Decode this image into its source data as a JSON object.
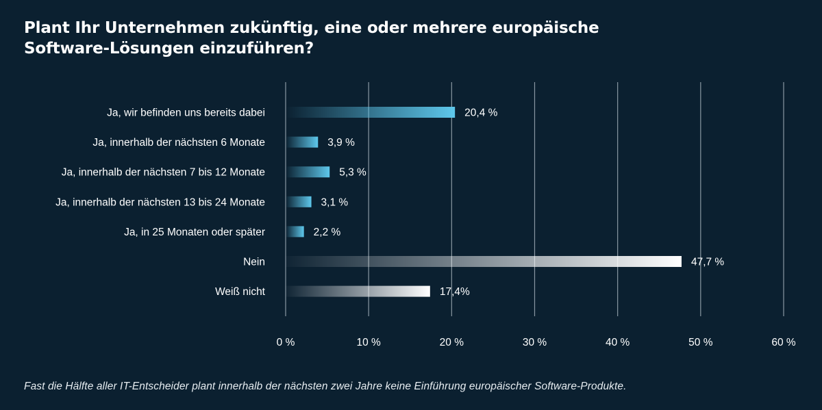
{
  "title_lines": [
    "Plant Ihr Unternehmen zukünftig, eine oder mehrere europäische",
    "Software-Lösungen einzuführen?"
  ],
  "footnote": "Fast die Hälfte aller IT-Entscheider plant innerhalb der nächsten zwei Jahre keine Einführung europäischer Software-Produkte.",
  "colors": {
    "background": "#0b2030",
    "yes_bar_end": "#5ec8ec",
    "no_bar_end": "#ffffff",
    "gridline": "#8a98a3"
  },
  "chart_data": {
    "type": "bar",
    "orientation": "horizontal",
    "title": "Plant Ihr Unternehmen zukünftig, eine oder mehrere europäische Software-Lösungen einzuführen?",
    "categories": [
      "Ja, wir befinden uns bereits dabei",
      "Ja, innerhalb der nächsten 6 Monate",
      "Ja, innerhalb der nächsten 7 bis 12 Monate",
      "Ja, innerhalb der nächsten 13 bis 24 Monate",
      "Ja, in 25 Monaten oder später",
      "Nein",
      "Weiß nicht"
    ],
    "values": [
      20.4,
      3.9,
      5.3,
      3.1,
      2.2,
      47.7,
      17.4
    ],
    "value_labels": [
      "20,4 %",
      "3,9 %",
      "5,3 %",
      "3,1 %",
      "2,2 %",
      "47,7 %",
      "17,4%"
    ],
    "bar_color_group": [
      "yes",
      "yes",
      "yes",
      "yes",
      "yes",
      "no",
      "no"
    ],
    "xlim": [
      0,
      60
    ],
    "xticks": [
      0,
      10,
      20,
      30,
      40,
      50,
      60
    ],
    "xtick_labels": [
      "0 %",
      "10 %",
      "20 %",
      "30 %",
      "40 %",
      "50 %",
      "60 %"
    ],
    "grid": true,
    "legend": "none"
  }
}
